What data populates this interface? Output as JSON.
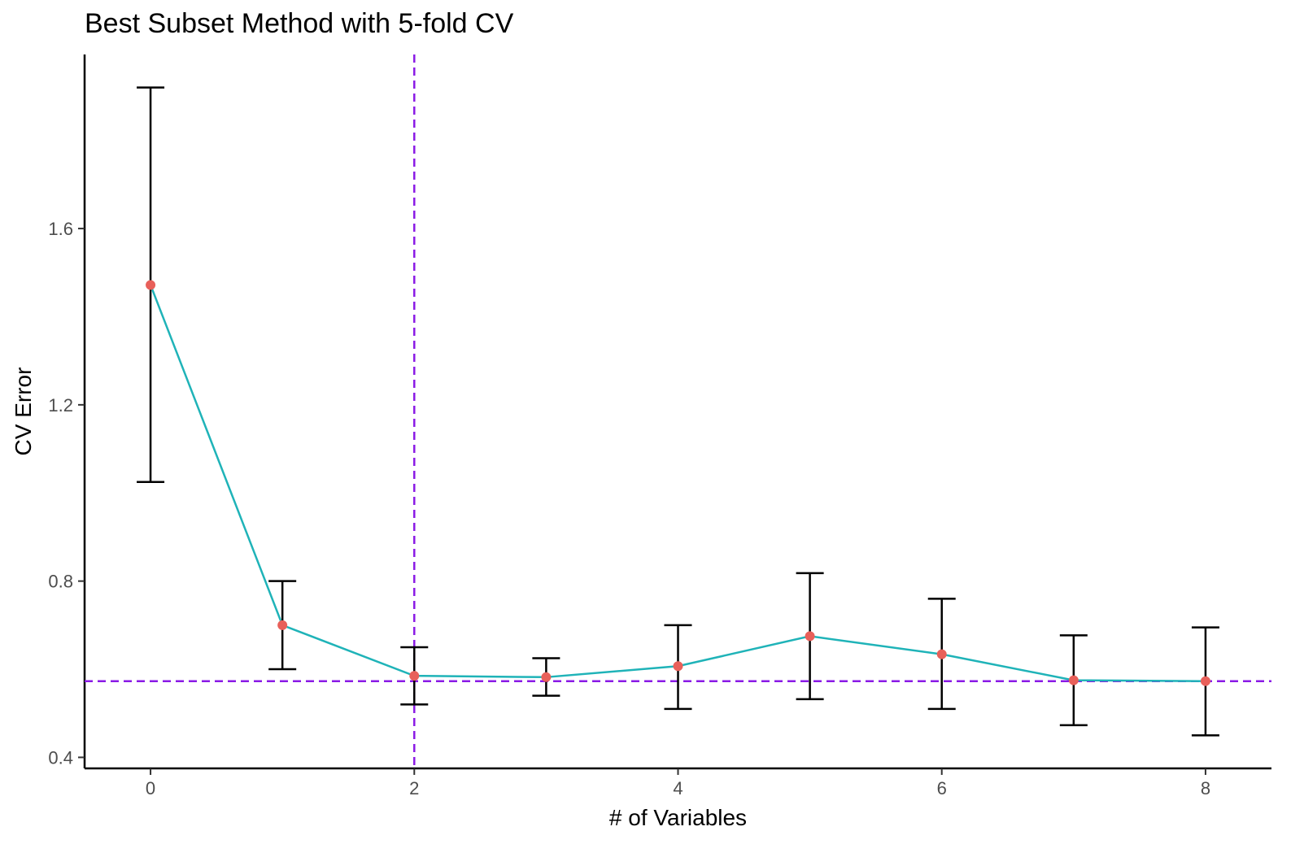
{
  "chart_data": {
    "type": "line",
    "title": "Best Subset Method with 5-fold CV",
    "xlabel": "# of Variables",
    "ylabel": "CV Error",
    "xlim": [
      -0.5,
      8.5
    ],
    "ylim": [
      0.375,
      1.995
    ],
    "x_ticks": [
      0,
      2,
      4,
      6,
      8
    ],
    "y_ticks": [
      0.4,
      0.8,
      1.2,
      1.6
    ],
    "grid": false,
    "legend": "none",
    "series": [
      {
        "x": [
          0,
          1,
          2,
          3,
          4,
          5,
          6,
          7,
          8
        ],
        "values": [
          1.472,
          0.7,
          0.585,
          0.582,
          0.607,
          0.675,
          0.634,
          0.575,
          0.573
        ],
        "error_upper": [
          1.92,
          0.8,
          0.65,
          0.625,
          0.7,
          0.818,
          0.76,
          0.677,
          0.695
        ],
        "error_lower": [
          1.025,
          0.6,
          0.52,
          0.54,
          0.51,
          0.532,
          0.51,
          0.473,
          0.45
        ],
        "line_color": "#1fb3b8",
        "point_color": "#e8605a"
      }
    ],
    "reference_lines": {
      "vertical_x": 2,
      "horizontal_y": 0.573,
      "color": "#8a1ae6"
    }
  }
}
